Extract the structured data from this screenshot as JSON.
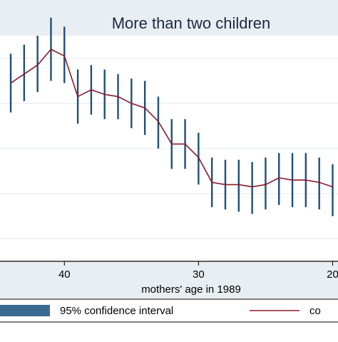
{
  "chart_data": {
    "type": "line",
    "title": "More than two children",
    "xlabel": "mothers' age in 1989",
    "ylabel": "",
    "x_reversed": true,
    "x_ticks": [
      40,
      30,
      20
    ],
    "xlim": [
      19.6,
      44.8
    ],
    "ylim": [
      0,
      10
    ],
    "y_gridlines": [
      1.0,
      3.0,
      5.0,
      7.0,
      9.0
    ],
    "grid": true,
    "legend": {
      "placement": "bottom",
      "entries": [
        {
          "label": "95% confidence interval",
          "kind": "bar"
        },
        {
          "label": "co",
          "kind": "line"
        }
      ]
    },
    "series": [
      {
        "kind": "line",
        "color": "#8b1a2b",
        "x": [
          44,
          43,
          42,
          41,
          40,
          39,
          38,
          37,
          36,
          35,
          34,
          33,
          32,
          31,
          30,
          29,
          28,
          27,
          26,
          25,
          24,
          23,
          22,
          21,
          20
        ],
        "y": [
          7.9,
          8.3,
          8.7,
          9.4,
          9.1,
          7.3,
          7.6,
          7.4,
          7.3,
          7.0,
          6.8,
          6.2,
          5.2,
          5.2,
          4.6,
          3.5,
          3.4,
          3.4,
          3.3,
          3.4,
          3.7,
          3.6,
          3.6,
          3.5,
          3.3
        ],
        "ci_low": [
          6.6,
          7.1,
          7.5,
          8.0,
          7.9,
          6.1,
          6.5,
          6.3,
          6.3,
          5.9,
          5.6,
          5.0,
          4.1,
          4.1,
          3.4,
          2.4,
          2.3,
          2.2,
          2.1,
          2.3,
          2.5,
          2.4,
          2.4,
          2.3,
          2.0
        ],
        "ci_high": [
          9.2,
          9.6,
          10.0,
          10.8,
          10.4,
          8.5,
          8.7,
          8.5,
          8.3,
          8.1,
          8.0,
          7.3,
          6.3,
          6.3,
          5.7,
          4.6,
          4.5,
          4.5,
          4.4,
          4.6,
          4.8,
          4.8,
          4.8,
          4.6,
          4.3
        ]
      }
    ],
    "colors": {
      "ci": "#1f4e79",
      "ci_legend_fill": "#3b6a91",
      "line": "#8b1a2b",
      "title_band": "#e9eef2",
      "grid": "#e4e8ec",
      "axis": "#000000",
      "text": "#000000",
      "title_text": "#1a2a44"
    }
  }
}
